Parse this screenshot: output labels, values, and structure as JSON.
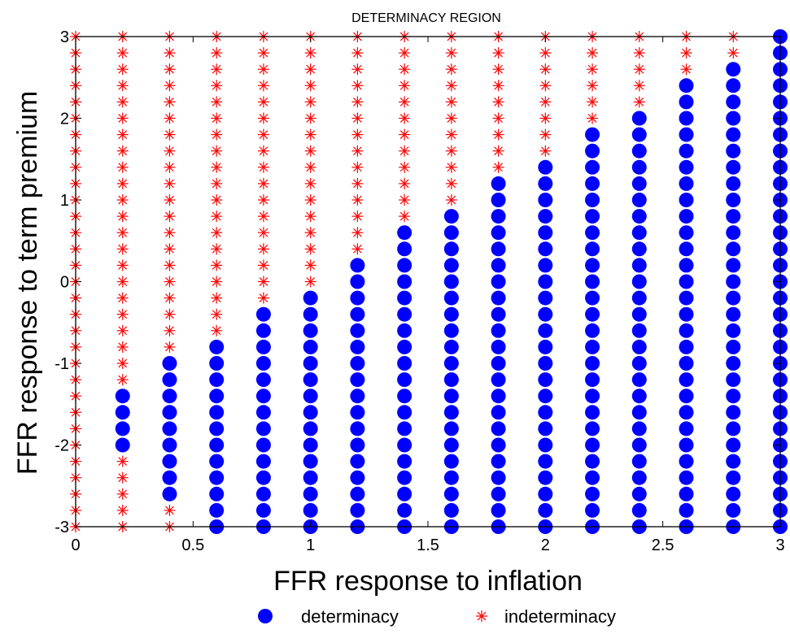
{
  "chart_data": {
    "type": "scatter",
    "title": "DETERMINACY REGION",
    "xlabel": "FFR response to inflation",
    "ylabel": "FFR response to term premium",
    "xlim": [
      0,
      3
    ],
    "ylim": [
      -3,
      3
    ],
    "xticks": [
      0,
      0.5,
      1,
      1.5,
      2,
      2.5,
      3
    ],
    "xtick_labels": [
      "0",
      "0.5",
      "1",
      "1.5",
      "2",
      "2.5",
      "3"
    ],
    "yticks": [
      -3,
      -2,
      -1,
      0,
      1,
      2,
      3
    ],
    "ytick_labels": [
      "-3",
      "-2",
      "-1",
      "0",
      "1",
      "2",
      "3"
    ],
    "grid": false,
    "legend_position": "bottom",
    "grid_x": [
      0,
      0.2,
      0.4,
      0.6,
      0.8,
      1.0,
      1.2,
      1.4,
      1.6,
      1.8,
      2.0,
      2.2,
      2.4,
      2.6,
      2.8,
      3.0
    ],
    "grid_y_min": -3,
    "grid_y_max": 3,
    "grid_y_step": 0.2,
    "series": [
      {
        "name": "determinacy",
        "marker": "filled-circle",
        "color": "#0000ff",
        "columns": [
          {
            "x": 0.2,
            "y_from": -2.0,
            "y_to": -1.4
          },
          {
            "x": 0.4,
            "y_from": -2.6,
            "y_to": -1.0
          },
          {
            "x": 0.6,
            "y_from": -3.0,
            "y_to": -0.8
          },
          {
            "x": 0.8,
            "y_from": -3.0,
            "y_to": -0.4
          },
          {
            "x": 1.0,
            "y_from": -3.0,
            "y_to": -0.2
          },
          {
            "x": 1.2,
            "y_from": -3.0,
            "y_to": 0.2
          },
          {
            "x": 1.4,
            "y_from": -3.0,
            "y_to": 0.6
          },
          {
            "x": 1.6,
            "y_from": -3.0,
            "y_to": 0.8
          },
          {
            "x": 1.8,
            "y_from": -3.0,
            "y_to": 1.2
          },
          {
            "x": 2.0,
            "y_from": -3.0,
            "y_to": 1.4
          },
          {
            "x": 2.2,
            "y_from": -3.0,
            "y_to": 1.8
          },
          {
            "x": 2.4,
            "y_from": -3.0,
            "y_to": 2.0
          },
          {
            "x": 2.6,
            "y_from": -3.0,
            "y_to": 2.4
          },
          {
            "x": 2.8,
            "y_from": -3.0,
            "y_to": 2.6
          },
          {
            "x": 3.0,
            "y_from": -3.0,
            "y_to": 3.0
          }
        ]
      },
      {
        "name": "indeterminacy",
        "marker": "asterisk",
        "color": "#ff0000",
        "description": "all remaining grid points"
      }
    ]
  }
}
